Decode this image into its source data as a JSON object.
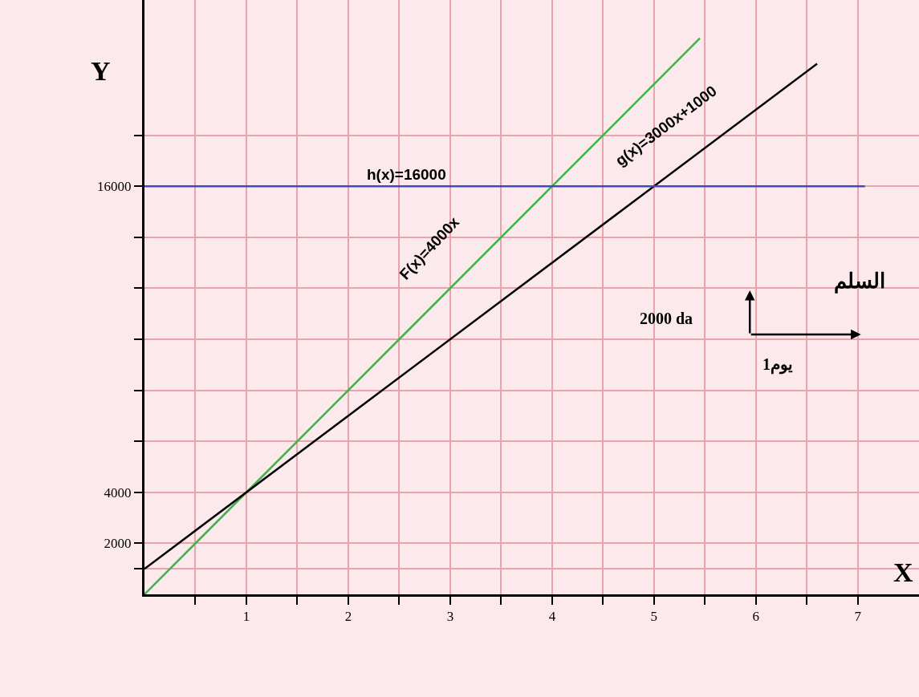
{
  "chart_data": {
    "type": "line",
    "xlabel": "X",
    "ylabel": "Y",
    "xlim": [
      0,
      7.6
    ],
    "ylim": [
      0,
      23300
    ],
    "xticks": [
      {
        "value": 0.5,
        "label": null
      },
      1,
      {
        "value": 1.5,
        "label": null
      },
      2,
      {
        "value": 2.5,
        "label": null
      },
      3,
      {
        "value": 3.5,
        "label": null
      },
      4,
      {
        "value": 4.5,
        "label": null
      },
      5,
      {
        "value": 5.5,
        "label": null
      },
      6,
      {
        "value": 6.5,
        "label": null
      },
      7
    ],
    "yticks": [
      {
        "value": 1000,
        "label": null
      },
      2000,
      4000,
      {
        "value": 6000,
        "label": null
      },
      {
        "value": 8000,
        "label": null
      },
      {
        "value": 10000,
        "label": null
      },
      {
        "value": 12000,
        "label": null
      },
      {
        "value": 14000,
        "label": null
      },
      16000,
      {
        "value": 18000,
        "label": null
      }
    ],
    "grid": true,
    "marker": "none",
    "line_style": "solid",
    "series": [
      {
        "color": "#3cb44b",
        "x": [
          0,
          5.45
        ],
        "values": [
          0,
          21800
        ]
      },
      {
        "color": "#000000",
        "x": [
          0,
          6.6
        ],
        "values": [
          1000,
          20800
        ]
      },
      {
        "color": "#3f48cc",
        "x": [
          0,
          7.07
        ],
        "values": [
          16000,
          16000
        ]
      }
    ],
    "annotations": [
      "h(x)=16000",
      "F(x)=4000x",
      "g(x)=3000x+1000",
      "السلم",
      "2000 da",
      "1يوم"
    ]
  }
}
